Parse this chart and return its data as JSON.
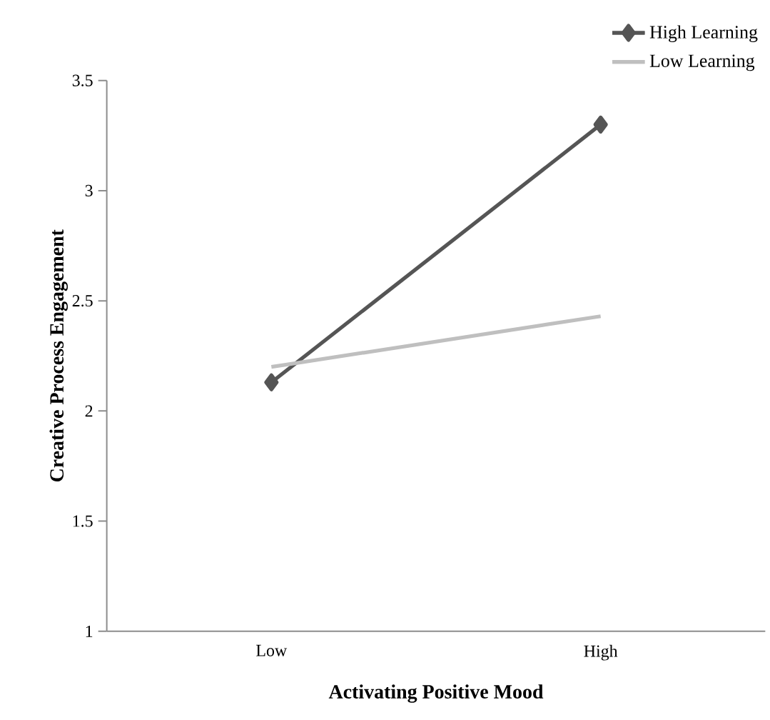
{
  "chart_data": {
    "type": "line",
    "xlabel": "Activating Positive Mood",
    "ylabel": "Creative Process Engagement",
    "categories": [
      "Low",
      "High"
    ],
    "series": [
      {
        "name": "High Learning",
        "color": "#555555",
        "values": [
          2.13,
          3.3
        ],
        "marker": "diamond"
      },
      {
        "name": "Low Learning",
        "color": "#bfbfbf",
        "values": [
          2.2,
          2.43
        ],
        "marker": "none"
      }
    ],
    "ylim": [
      1,
      3.5
    ],
    "yticks": [
      1,
      1.5,
      2,
      2.5,
      3,
      3.5
    ],
    "grid": false,
    "legend": "top right",
    "line_style": "solid"
  }
}
